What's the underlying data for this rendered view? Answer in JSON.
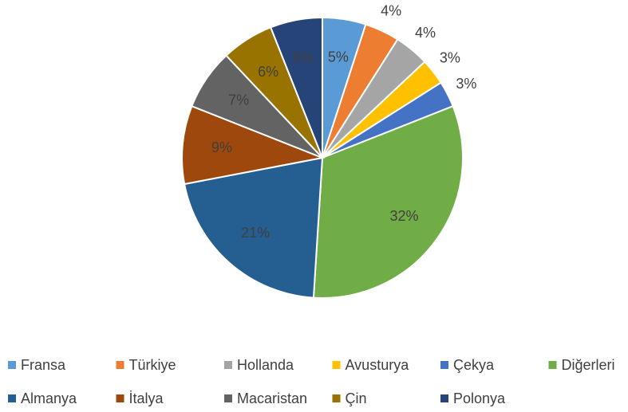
{
  "chart_data": {
    "type": "pie",
    "categories": [
      "Fransa",
      "Türkiye",
      "Hollanda",
      "Avusturya",
      "Çekya",
      "Diğerleri",
      "Almanya",
      "İtalya",
      "Macaristan",
      "Çin",
      "Polonya"
    ],
    "values": [
      5,
      4,
      4,
      3,
      3,
      32,
      21,
      9,
      7,
      6,
      6
    ],
    "value_labels": [
      "5%",
      "4%",
      "4%",
      "3%",
      "3%",
      "32%",
      "21%",
      "9%",
      "7%",
      "6%",
      "6%"
    ],
    "colors": [
      "#5B9BD5",
      "#ED7D31",
      "#A5A5A5",
      "#FFC000",
      "#4472C4",
      "#70AD47",
      "#255E91",
      "#9E480E",
      "#636363",
      "#997300",
      "#264478"
    ],
    "legend": "bottom"
  }
}
